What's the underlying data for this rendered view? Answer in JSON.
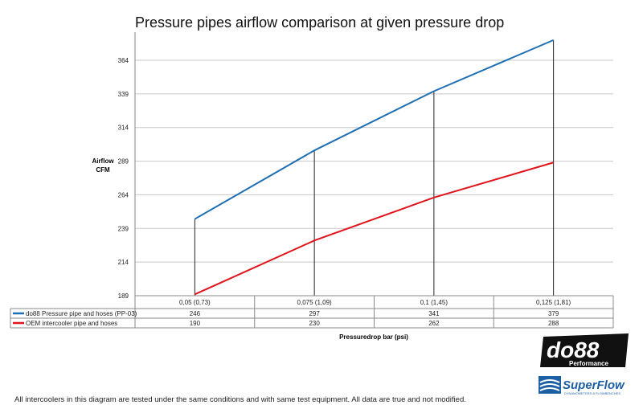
{
  "chart_data": {
    "type": "line",
    "title": "Pressure pipes airflow comparison at given pressure drop",
    "ylabel": [
      "Airflow",
      "CFM"
    ],
    "xlabel": "Pressuredrop bar (psi)",
    "categories": [
      "0,05 (0,73)",
      "0,075 (1,09)",
      "0,1 (1,45)",
      "0,125 (1,81)"
    ],
    "yticks": [
      189,
      214,
      239,
      264,
      289,
      314,
      339,
      364
    ],
    "ylim": [
      189,
      379
    ],
    "grid": true,
    "legend": "data-table",
    "series": [
      {
        "name": "do88 Pressure pipe and hoses (PP-03)",
        "values": [
          246,
          297,
          341,
          379
        ],
        "color": "#1f6fb4"
      },
      {
        "name": "OEM intercooler pipe and hoses",
        "values": [
          190,
          230,
          262,
          288
        ],
        "color": "#e0141b"
      }
    ]
  },
  "footnote": "All intercoolers in this diagram are tested under the same conditions and with same test equipment. All data are true and not modified.",
  "logos": {
    "do88": "do88",
    "do88_sub": "Performance",
    "superflow": "SuperFlow",
    "superflow_sub": "DYNAMOMETERS & FLOWBENCHES"
  }
}
